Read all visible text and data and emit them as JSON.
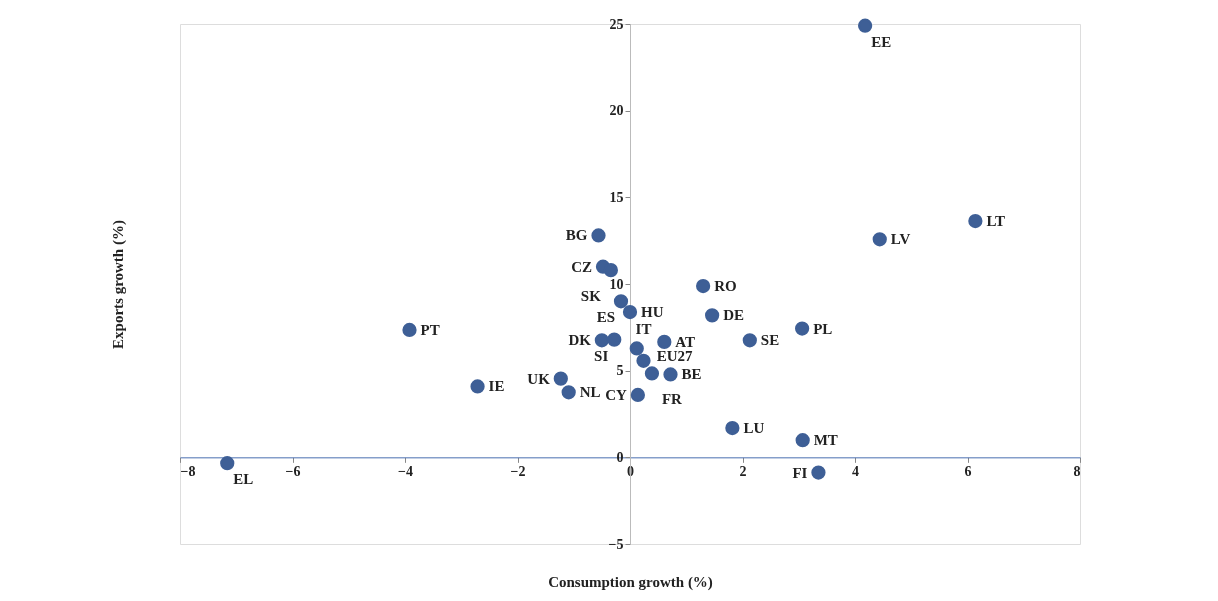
{
  "chart_data": {
    "type": "scatter",
    "xlabel": "Consumption growth (%)",
    "ylabel": "Exports growth (%)",
    "x": [
      4.18,
      6.14,
      4.44,
      -0.56,
      -0.48,
      -0.34,
      1.3,
      -0.16,
      0.0,
      1.46,
      -3.92,
      3.06,
      -0.5,
      -0.28,
      0.61,
      2.13,
      0.12,
      0.24,
      -1.23,
      -2.71,
      -1.09,
      0.39,
      0.72,
      0.14,
      1.82,
      3.07,
      -7.16,
      3.35
    ],
    "series": [
      {
        "color": "#3e5f96",
        "values": [
          24.9,
          13.63,
          12.58,
          12.8,
          11.0,
          10.8,
          9.88,
          9.0,
          8.38,
          8.19,
          7.35,
          7.43,
          6.75,
          6.79,
          6.66,
          6.75,
          6.28,
          5.57,
          4.54,
          4.09,
          3.75,
          4.84,
          4.78,
          3.6,
          1.69,
          0.99,
          -0.34,
          -0.88
        ],
        "value_labels": [
          "EE",
          "LT",
          "LV",
          "BG",
          "CZ",
          "SK",
          "RO",
          "ES",
          "HU",
          "DE",
          "PT",
          "PL",
          "DK",
          "SI",
          "AT",
          "SE",
          "EU27",
          "IT",
          "UK",
          "IE",
          "NL",
          "FR",
          "BE",
          "CY",
          "LU",
          "MT",
          "EL",
          "FI"
        ]
      }
    ],
    "xlim": [
      -8,
      8
    ],
    "ylim": [
      -5,
      25
    ],
    "xticks": [
      -8,
      -6,
      -4,
      -2,
      0,
      2,
      4,
      6,
      8
    ],
    "yticks": [
      -5,
      0,
      5,
      10,
      15,
      20,
      25
    ],
    "marker": "circle",
    "grid": false
  }
}
